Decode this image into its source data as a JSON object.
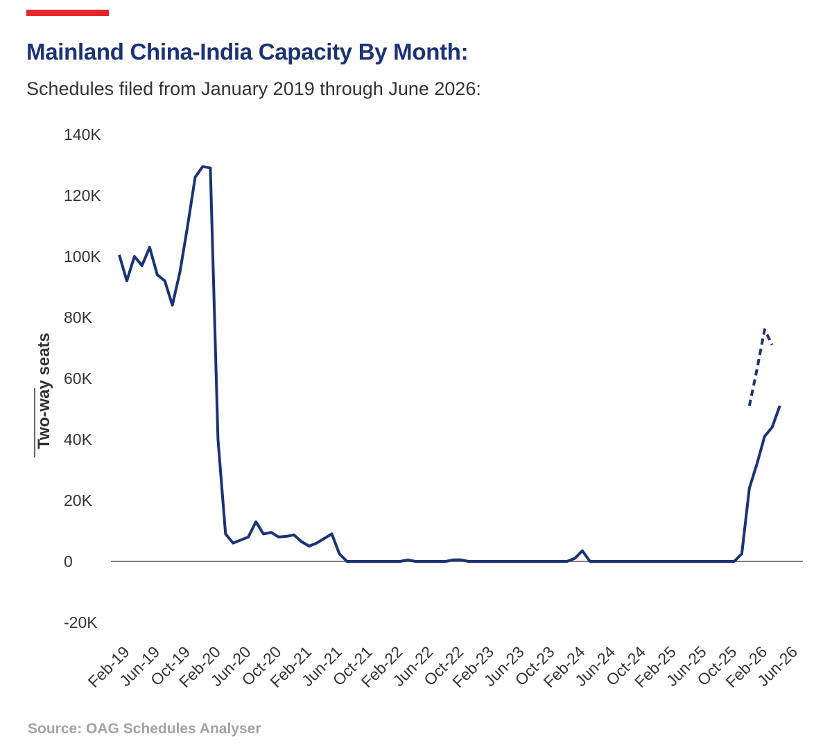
{
  "header": {
    "title": "Mainland China-India Capacity By Month:",
    "subtitle": "Schedules filed from January 2019 through June 2026:"
  },
  "footer": {
    "source": "Source: OAG Schedules Analyser"
  },
  "colors": {
    "accent": "#e4252a",
    "line": "#1a3276",
    "text": "#333333",
    "zero_line": "#555555"
  },
  "chart_data": {
    "type": "line",
    "title": "Mainland China-India Capacity By Month:",
    "subtitle": "Schedules filed from January 2019 through June 2026:",
    "xlabel": "",
    "ylabel": "Two-way seats",
    "ylim": [
      -20000,
      140000
    ],
    "yticks": [
      -20000,
      0,
      20000,
      40000,
      60000,
      80000,
      100000,
      120000,
      140000
    ],
    "ytick_labels": [
      "-20K",
      "0",
      "20K",
      "40K",
      "60K",
      "80K",
      "100K",
      "120K",
      "140K"
    ],
    "xtick_labels": [
      "Feb-19",
      "Jun-19",
      "Oct-19",
      "Feb-20",
      "Jun-20",
      "Oct-20",
      "Feb-21",
      "Jun-21",
      "Oct-21",
      "Feb-22",
      "Jun-22",
      "Oct-22",
      "Feb-23",
      "Jun-23",
      "Oct-23",
      "Feb-24",
      "Jun-24",
      "Oct-24",
      "Feb-25",
      "Jun-25",
      "Oct-25",
      "Feb-26",
      "Jun-26"
    ],
    "xtick_month_index": [
      1,
      5,
      9,
      13,
      17,
      21,
      25,
      29,
      33,
      37,
      41,
      45,
      49,
      53,
      57,
      61,
      65,
      69,
      73,
      77,
      81,
      85,
      89
    ],
    "grid": false,
    "series": [
      {
        "name": "Two-way seats",
        "style": "solid",
        "start_month": "Feb-19",
        "values": [
          100500,
          92000,
          100000,
          97000,
          103000,
          94000,
          92000,
          84000,
          95000,
          110000,
          126000,
          129500,
          129000,
          40000,
          9000,
          6000,
          7000,
          8000,
          13000,
          9000,
          9500,
          8000,
          8200,
          8700,
          6500,
          5000,
          6000,
          7500,
          9000,
          2500,
          0,
          0,
          0,
          0,
          0,
          0,
          0,
          0,
          500,
          0,
          0,
          0,
          0,
          0,
          500,
          500,
          0,
          0,
          0,
          0,
          0,
          0,
          0,
          0,
          0,
          0,
          0,
          0,
          0,
          0,
          1000,
          3500,
          0,
          0,
          0,
          0,
          0,
          0,
          0,
          0,
          0,
          0,
          0,
          0,
          0,
          0,
          0,
          0,
          0,
          0,
          0,
          0,
          2500,
          24000,
          32000,
          41000,
          44000,
          51000
        ]
      },
      {
        "name": "Two-way seats (projected)",
        "style": "dashed",
        "start_month": "Jan-26",
        "values": [
          51000,
          63000,
          76000,
          71000
        ]
      }
    ]
  }
}
